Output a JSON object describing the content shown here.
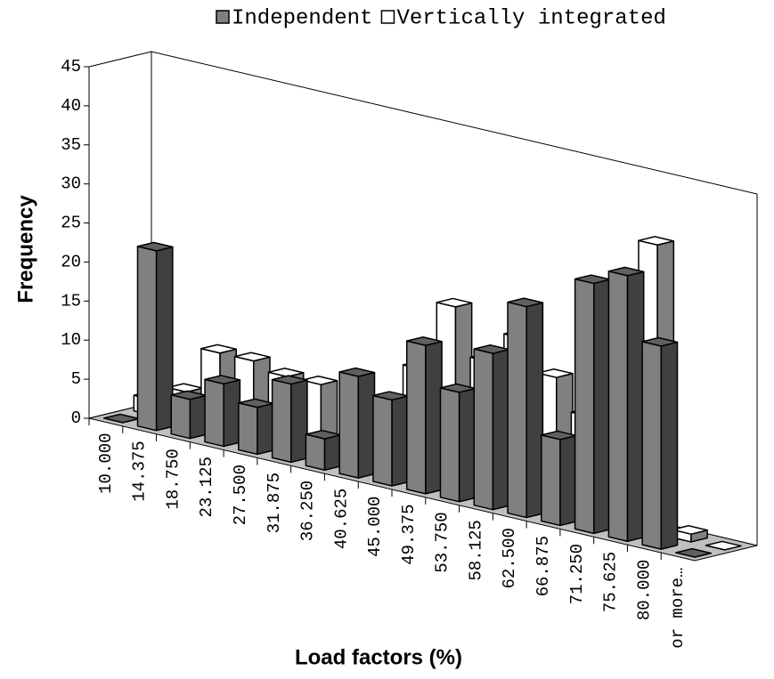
{
  "chart_data": {
    "type": "bar3d",
    "x_label": "Load factors (%)",
    "y_label": "Frequency",
    "legend": "top",
    "categories": [
      "10.000",
      "14.375",
      "18.750",
      "23.125",
      "27.500",
      "31.875",
      "36.250",
      "40.625",
      "45.000",
      "49.375",
      "53.750",
      "58.125",
      "62.500",
      "66.875",
      "71.250",
      "75.625",
      "80.000",
      "or more…"
    ],
    "series": [
      {
        "name": "Independent",
        "color": "#808080",
        "values": [
          0,
          23,
          5,
          8,
          6,
          10,
          4,
          13,
          11,
          19,
          14,
          20,
          27,
          11,
          32,
          34,
          26,
          0
        ]
      },
      {
        "name": "Vertically integrated",
        "color": "#ffffff",
        "values": [
          2,
          4,
          10,
          10,
          9,
          9,
          2,
          3,
          14,
          23,
          17,
          21,
          17,
          13,
          1,
          37,
          1,
          0
        ]
      }
    ],
    "ylim": [
      0,
      45
    ],
    "yticks": [
      0,
      5,
      10,
      15,
      20,
      25,
      30,
      35,
      40,
      45
    ]
  }
}
